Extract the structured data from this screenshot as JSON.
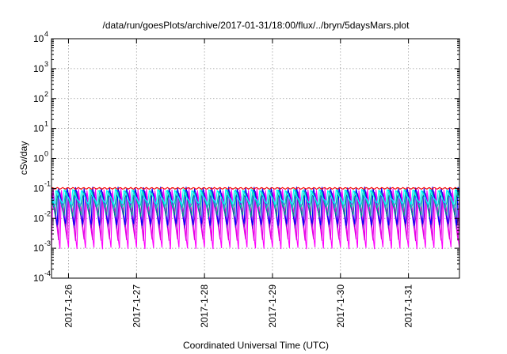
{
  "chart_data": {
    "type": "line",
    "title": "/data/run/goesPlots/archive/2017-01-31/18:00/flux/../bryn/5daysMars.plot",
    "xlabel": "Coordinated Universal Time (UTC)",
    "ylabel": "cSv/day",
    "yscale": "log",
    "ylim": [
      0.0001,
      10000
    ],
    "xlim": [
      "2017-01-25T18:00",
      "2017-01-31T18:00"
    ],
    "x_ticks": [
      "2017-1-26",
      "2017-1-27",
      "2017-1-28",
      "2017-1-29",
      "2017-1-30",
      "2017-1-31"
    ],
    "y_ticks": [
      {
        "base": "10",
        "exp": "-4",
        "value": 0.0001
      },
      {
        "base": "10",
        "exp": "-3",
        "value": 0.001
      },
      {
        "base": "10",
        "exp": "-2",
        "value": 0.01
      },
      {
        "base": "10",
        "exp": "-1",
        "value": 0.1
      },
      {
        "base": "10",
        "exp": "0",
        "value": 1
      },
      {
        "base": "10",
        "exp": "1",
        "value": 10
      },
      {
        "base": "10",
        "exp": "2",
        "value": 100
      },
      {
        "base": "10",
        "exp": "3",
        "value": 1000
      },
      {
        "base": "10",
        "exp": "4",
        "value": 10000
      }
    ],
    "grid": true,
    "legend": "none",
    "pattern": {
      "cycles_per_day": 8,
      "peak_value": 0.1,
      "trough_min": 0.001,
      "description_values_per_series_trough": [
        0.001,
        0.002,
        0.004,
        0.007,
        0.012,
        0.02,
        0.03
      ]
    },
    "series": [
      {
        "color": "#ff00ff",
        "trough": 0.001,
        "peak": 0.1
      },
      {
        "color": "#e000e0",
        "trough": 0.0014,
        "peak": 0.1
      },
      {
        "color": "#9400d3",
        "trough": 0.003,
        "peak": 0.1
      },
      {
        "color": "#0000ff",
        "trough": 0.006,
        "peak": 0.11
      },
      {
        "color": "#008b8b",
        "trough": 0.01,
        "peak": 0.1
      },
      {
        "color": "#00c0c0",
        "trough": 0.018,
        "peak": 0.1
      },
      {
        "color": "#00ffff",
        "trough": 0.03,
        "peak": 0.09
      },
      {
        "color": "#ff0000",
        "trough": 0.1,
        "peak": 0.1
      }
    ]
  }
}
